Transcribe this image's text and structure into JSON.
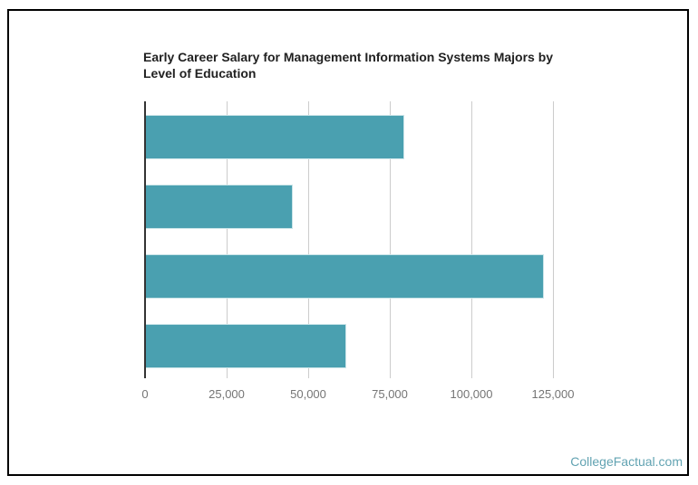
{
  "page": {
    "background_color": "#ffffff",
    "frame_border_color": "#000000"
  },
  "chart_data": {
    "type": "bar",
    "orientation": "horizontal",
    "title": "Early Career Salary for Management Information Systems Majors by Level of Education",
    "title_lines": [
      "Early Career Salary for Management Information Systems Majors by",
      "Level of Education"
    ],
    "values": [
      79500,
      45200,
      122300,
      61600
    ],
    "categories": [
      "",
      "",
      "",
      ""
    ],
    "x_ticks": [
      "0",
      "25,000",
      "50,000",
      "75,000",
      "100,000",
      "125,000"
    ],
    "x_tick_values": [
      0,
      25000,
      50000,
      75000,
      100000,
      125000
    ],
    "xlim": [
      0,
      137500
    ],
    "xlabel": "",
    "ylabel": "",
    "legend": "none",
    "grid": "vertical",
    "bar_color": "#4AA0B0",
    "gridline_color": "#cccccc",
    "axis_line_color": "#333333",
    "tick_label_color": "#757575",
    "title_color": "#212121"
  },
  "watermark": {
    "text": "CollegeFactual.com",
    "color": "#62a3b2"
  }
}
